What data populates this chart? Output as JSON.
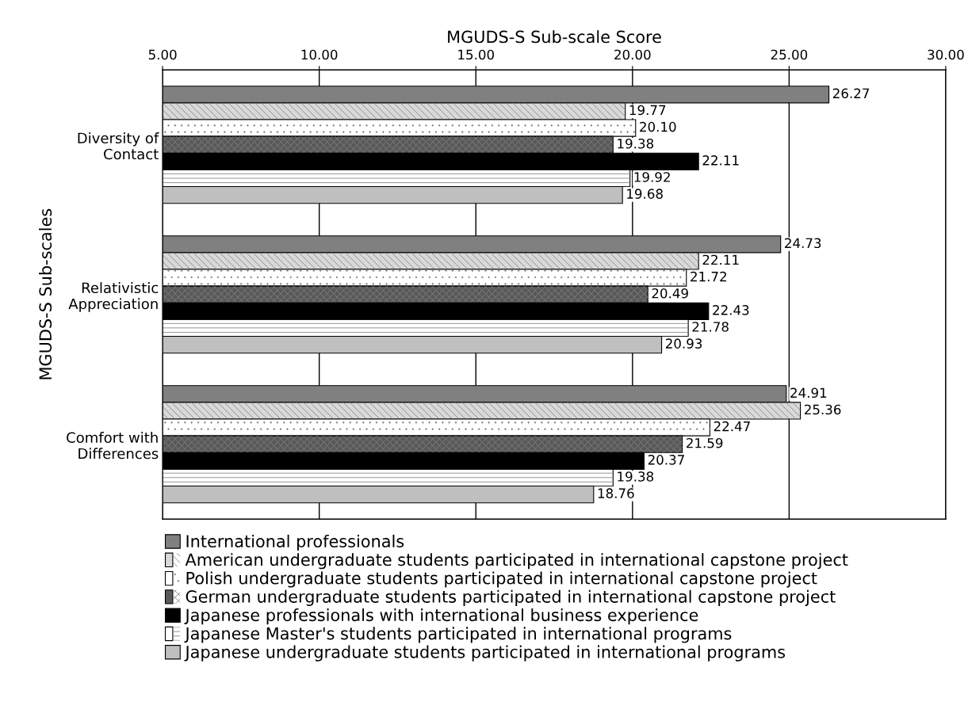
{
  "chart_data": {
    "type": "bar",
    "orientation": "horizontal",
    "xlabel": "MGUDS-S Sub-scale Score",
    "ylabel": "MGUDS-S Sub-scales",
    "categories": [
      "Diversity of\nContact",
      "Relativistic\nAppreciation",
      "Comfort with\nDifferences"
    ],
    "series": [
      {
        "name": "International professionals",
        "color": "#808080",
        "values": [
          26.27,
          24.73,
          24.91
        ],
        "value_labels": [
          "26.27",
          "24.73",
          "24.91"
        ]
      },
      {
        "name": "American undergraduate students participated in international capstone project",
        "color": "#d9d9d9",
        "values": [
          19.77,
          22.11,
          25.36
        ],
        "value_labels": [
          "19.77",
          "22.11",
          "25.36"
        ]
      },
      {
        "name": "Polish undergraduate students participated in international capstone project",
        "color": "#ffffff",
        "values": [
          20.1,
          21.72,
          22.47
        ],
        "value_labels": [
          "20.10",
          "21.72",
          "22.47"
        ]
      },
      {
        "name": "German undergraduate students participated in international capstone project",
        "color": "#595959",
        "values": [
          19.38,
          20.49,
          21.59
        ],
        "value_labels": [
          "19.38",
          "20.49",
          "21.59"
        ]
      },
      {
        "name": "Japanese professionals with international business experience",
        "color": "#000000",
        "values": [
          22.11,
          22.43,
          20.37
        ],
        "value_labels": [
          "22.11",
          "22.43",
          "20.37"
        ]
      },
      {
        "name": "Japanese Master's students participated in international programs",
        "color": "#ffffff",
        "values": [
          19.92,
          21.78,
          19.38
        ],
        "value_labels": [
          "19.92",
          "21.78",
          "19.38"
        ]
      },
      {
        "name": "Japanese undergraduate students participated in international programs",
        "color": "#bfbfbf",
        "values": [
          19.68,
          20.93,
          18.76
        ],
        "value_labels": [
          "19.68",
          "20.93",
          "18.76"
        ]
      }
    ],
    "xlim": [
      5,
      30
    ],
    "xticks": [
      {
        "value": 5,
        "label": "5.00"
      },
      {
        "value": 10,
        "label": "10.00"
      },
      {
        "value": 15,
        "label": "15.00"
      },
      {
        "value": 20,
        "label": "20.00"
      },
      {
        "value": 25,
        "label": "25.00"
      },
      {
        "value": 30,
        "label": "30.00"
      }
    ],
    "grid": "x",
    "legend": "bottom"
  }
}
